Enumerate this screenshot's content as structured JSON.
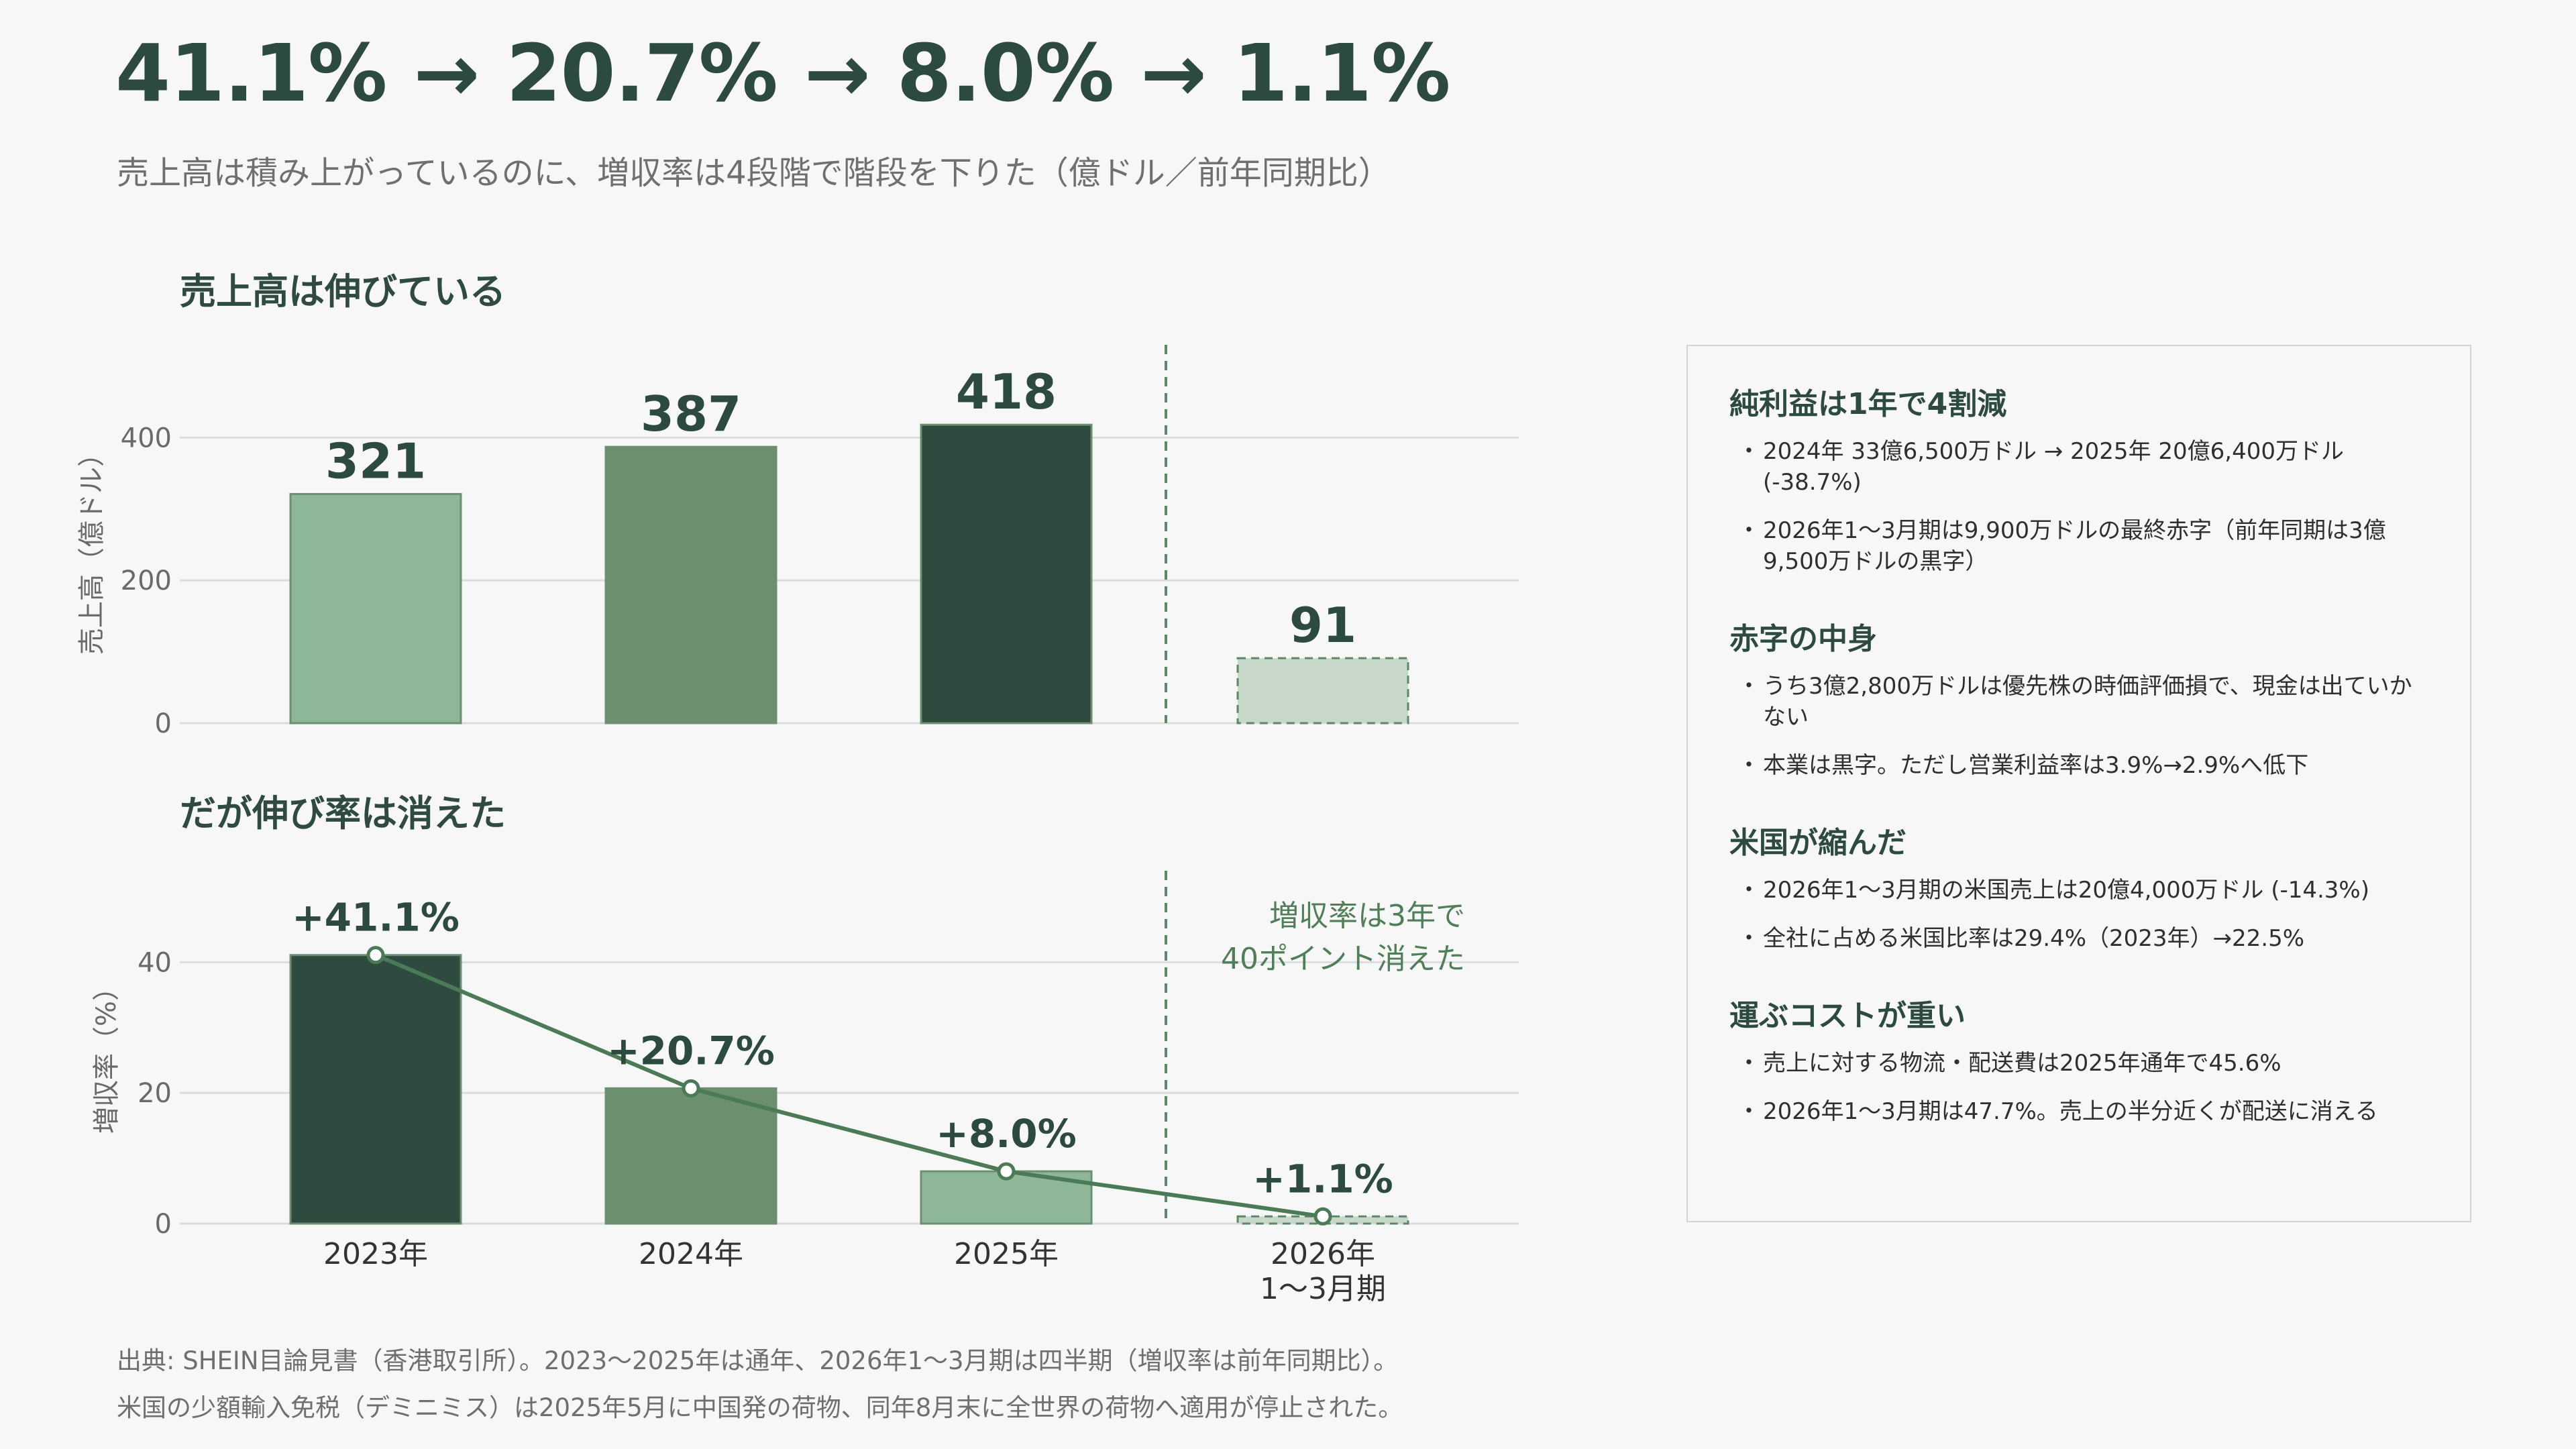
{
  "headline": "41.1% → 20.7% → 8.0% → 1.1%",
  "subtitle": "売上高は積み上がっているのに、増収率は4段階で階段を下りた（億ドル／前年同期比）",
  "colors": {
    "bar_2023_revenue": "#8db797",
    "bar_2024": "#6b8f6f",
    "bar_2025_revenue": "#2f4b40",
    "bar_2026": "#c7d8ca",
    "bar_2023_growth": "#2f4b40",
    "bar_2025_growth": "#8db797",
    "line": "#4b7a57",
    "text_dark": "#2d4a3e",
    "annotation": "#4f7f58"
  },
  "chart_data": [
    {
      "type": "bar",
      "title": "売上高は伸びている",
      "ylabel": "売上高（億ドル）",
      "categories": [
        "2023年",
        "2024年",
        "2025年",
        "2026年 1〜3月期"
      ],
      "values": [
        321,
        387,
        418,
        91
      ],
      "data_labels": [
        "321",
        "387",
        "418",
        "91"
      ],
      "yticks": [
        "0",
        "200",
        "400"
      ],
      "ylim": [
        0,
        530
      ],
      "grid": true,
      "separator_before_last": true
    },
    {
      "type": "bar",
      "title": "だが伸び率は消えた",
      "ylabel": "増収率（%）",
      "categories": [
        "2023年",
        "2024年",
        "2025年",
        "2026年 1〜3月期"
      ],
      "category_lines": [
        [
          "2023年"
        ],
        [
          "2024年"
        ],
        [
          "2025年"
        ],
        [
          "2026年",
          "1〜3月期"
        ]
      ],
      "values": [
        41.1,
        20.7,
        8.0,
        1.1
      ],
      "data_labels": [
        "+41.1%",
        "+20.7%",
        "+8.0%",
        "+1.1%"
      ],
      "yticks": [
        "0",
        "20",
        "40"
      ],
      "ylim": [
        0,
        54
      ],
      "grid": true,
      "line_overlay": true,
      "separator_before_last": true,
      "annotation": [
        "増収率は3年で",
        "40ポイント消えた"
      ]
    }
  ],
  "panel": {
    "sections": [
      {
        "heading": "純利益は1年で4割減",
        "items": [
          "2024年 33億6,500万ドル → 2025年 20億6,400万ドル (-38.7%)",
          "2026年1〜3月期は9,900万ドルの最終赤字（前年同期は3億9,500万ドルの黒字）"
        ]
      },
      {
        "heading": "赤字の中身",
        "items": [
          "うち3億2,800万ドルは優先株の時価評価損で、現金は出ていかない",
          "本業は黒字。ただし営業利益率は3.9%→2.9%へ低下"
        ]
      },
      {
        "heading": "米国が縮んだ",
        "items": [
          "2026年1〜3月期の米国売上は20億4,000万ドル (-14.3%)",
          "全社に占める米国比率は29.4%（2023年）→22.5%"
        ]
      },
      {
        "heading": "運ぶコストが重い",
        "items": [
          "売上に対する物流・配送費は2025年通年で45.6%",
          "2026年1〜3月期は47.7%。売上の半分近くが配送に消える"
        ]
      }
    ]
  },
  "footnotes": [
    "出典: SHEIN目論見書（香港取引所）。2023〜2025年は通年、2026年1〜3月期は四半期（増収率は前年同期比）。",
    "米国の少額輸入免税（デミニミス）は2025年5月に中国発の荷物、同年8月末に全世界の荷物へ適用が停止された。"
  ]
}
